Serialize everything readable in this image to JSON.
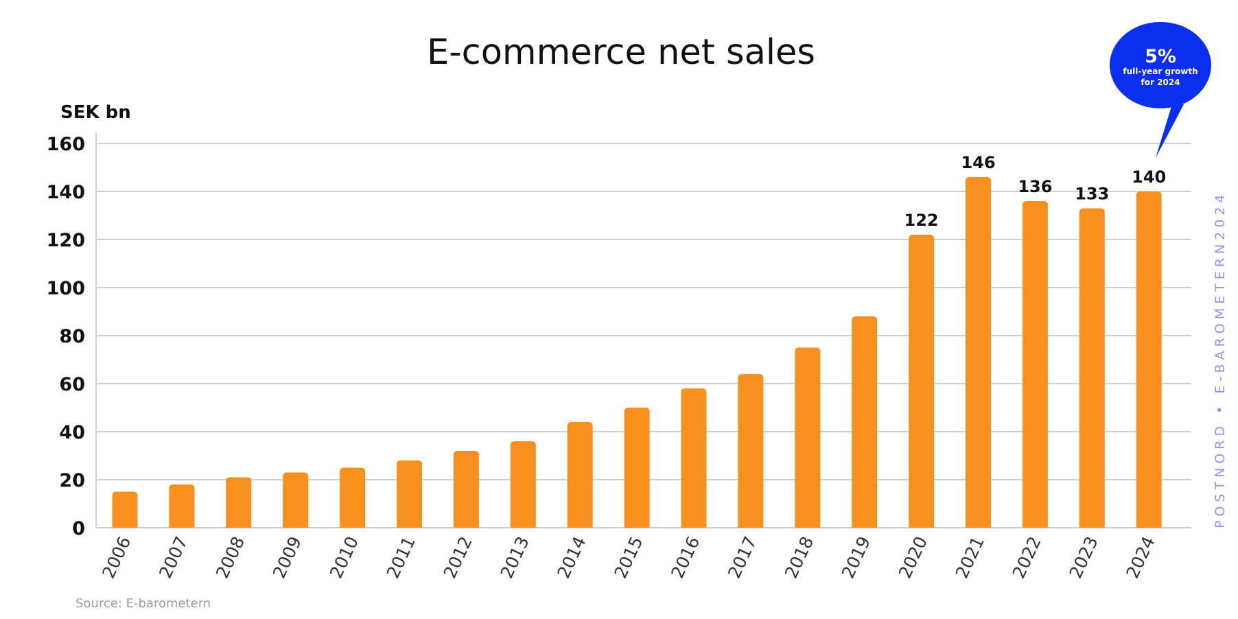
{
  "chart_data": {
    "type": "bar",
    "title": "E-commerce net sales",
    "ylabel": "SEK bn",
    "xlabel": "",
    "ylim": [
      0,
      160
    ],
    "yticks": [
      0,
      20,
      40,
      60,
      80,
      100,
      120,
      140,
      160
    ],
    "grid": true,
    "categories": [
      "2006",
      "2007",
      "2008",
      "2009",
      "2010",
      "2011",
      "2012",
      "2013",
      "2014",
      "2015",
      "2016",
      "2017",
      "2018",
      "2019",
      "2020",
      "2021",
      "2022",
      "2023",
      "2024"
    ],
    "values": [
      15,
      18,
      21,
      23,
      25,
      28,
      32,
      36,
      44,
      50,
      58,
      64,
      75,
      88,
      122,
      146,
      136,
      133,
      140
    ],
    "data_labels": [
      "",
      "",
      "",
      "",
      "",
      "",
      "",
      "",
      "",
      "",
      "",
      "",
      "",
      "",
      "122",
      "146",
      "136",
      "133",
      "140"
    ],
    "bar_color": "#f7901e",
    "callout": {
      "value": "5%",
      "line1": "full-year growth",
      "line2": "for 2024",
      "color": "#0b2ff0"
    },
    "source": "Source: E-barometern",
    "watermark": "POSTNORD • E-BAROMETERN2024",
    "watermark_color": "#8b96f2"
  }
}
